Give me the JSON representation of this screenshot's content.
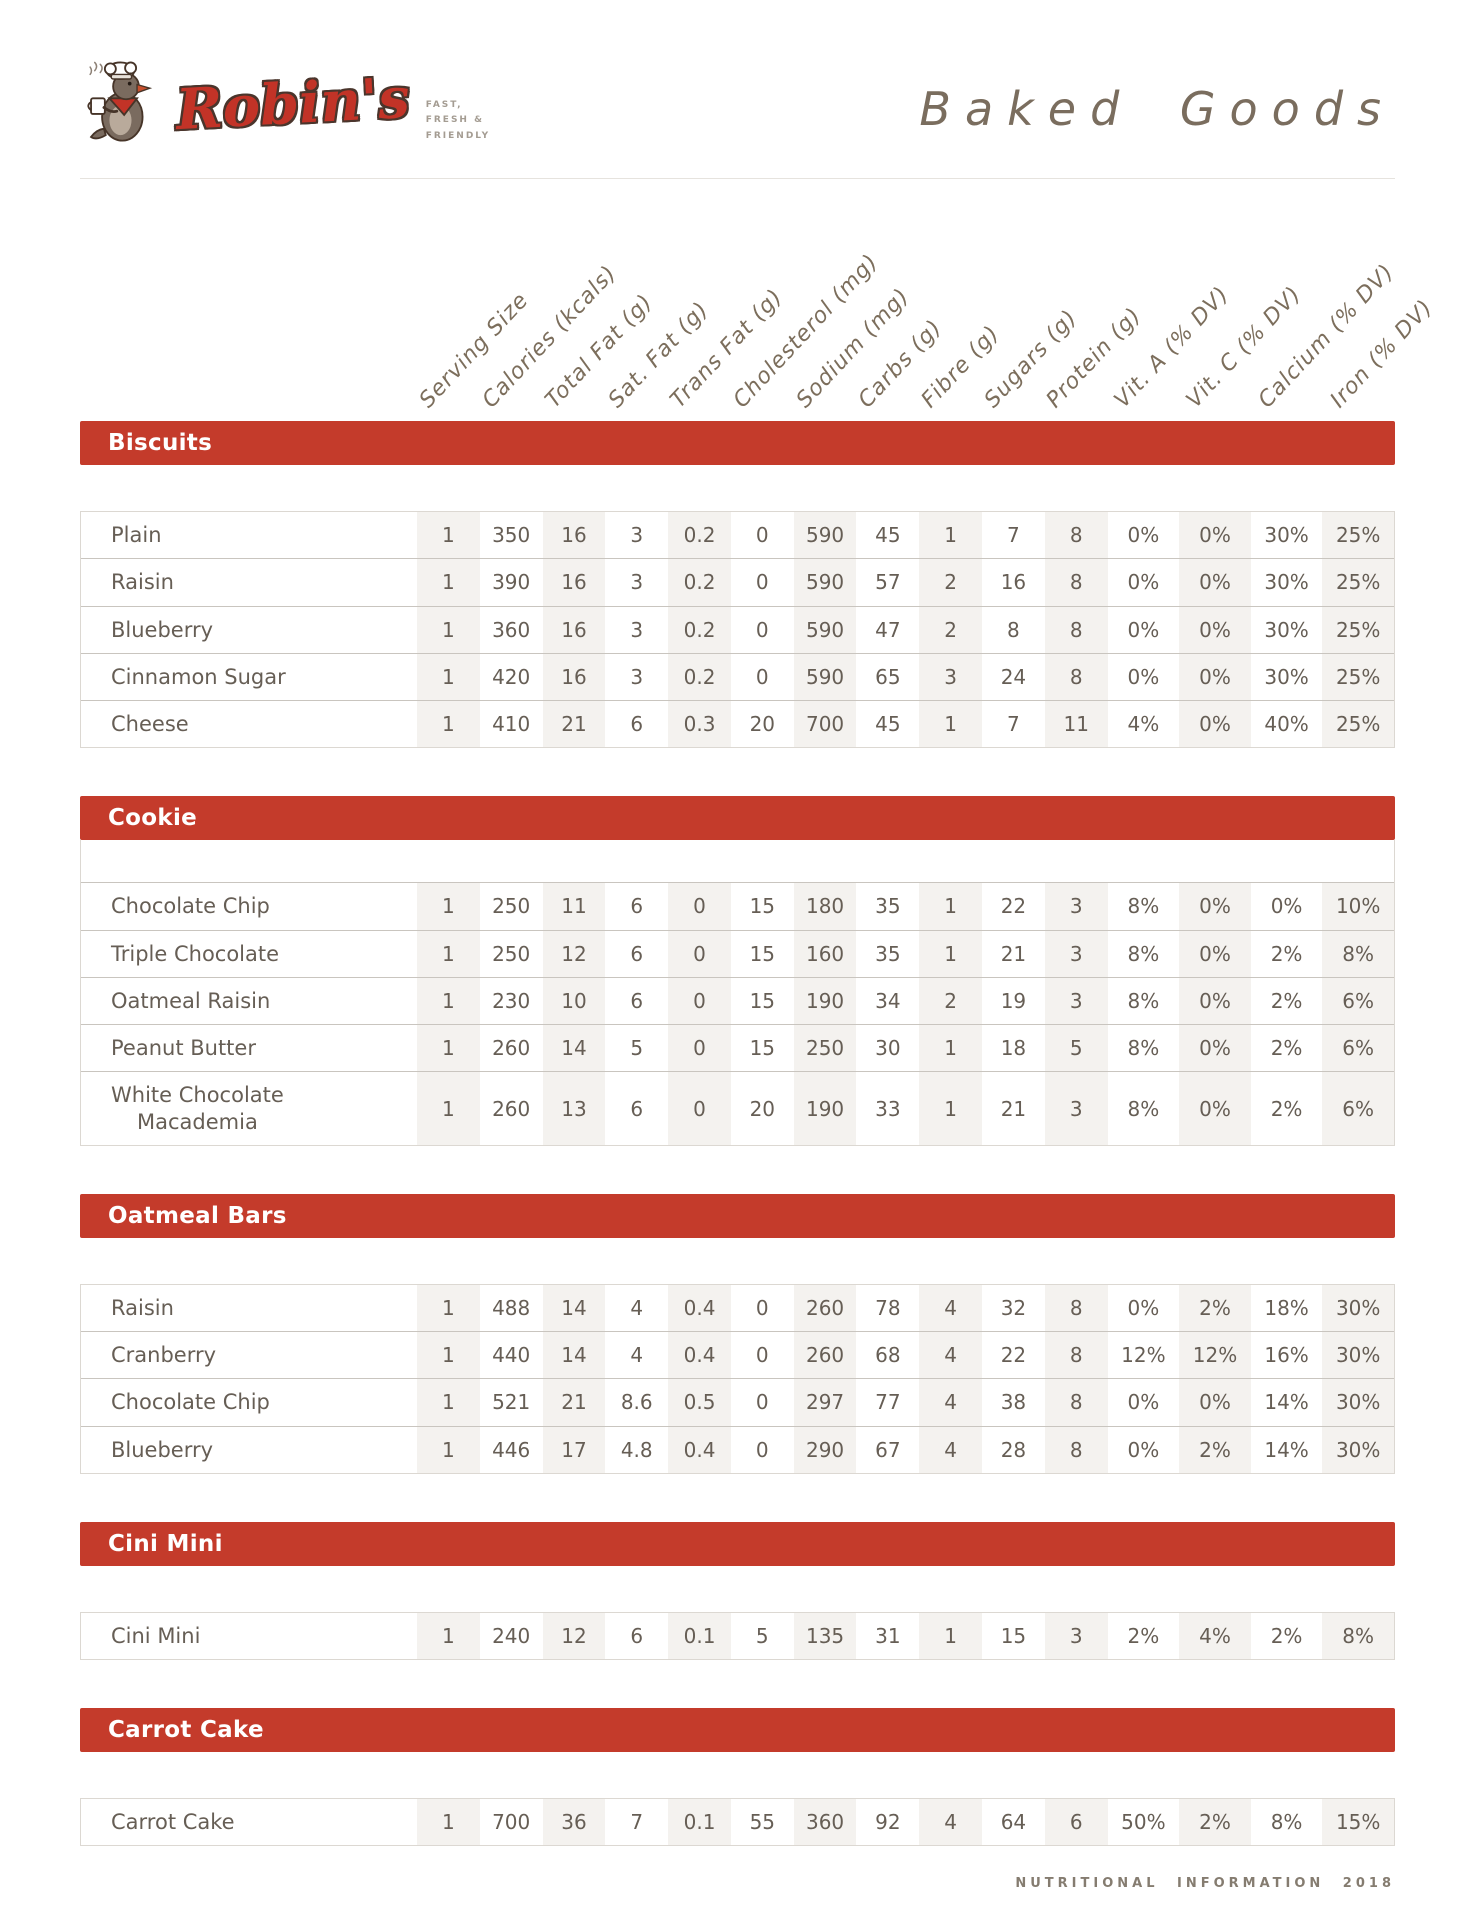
{
  "brand": {
    "name": "Robin's",
    "tagline_lines": [
      "FAST,",
      "FRESH &",
      "FRIENDLY"
    ]
  },
  "header": {
    "title": "Baked Goods"
  },
  "columns": [
    "Serving Size",
    "Calories (kcals)",
    "Total Fat (g)",
    "Sat. Fat (g)",
    "Trans Fat (g)",
    "Cholesterol (mg)",
    "Sodium (mg)",
    "Carbs (g)",
    "Fibre (g)",
    "Sugars (g)",
    "Protein (g)",
    "Vit. A (% DV)",
    "Vit. C (% DV)",
    "Calcium (% DV)",
    "Iron (% DV)"
  ],
  "sections": [
    {
      "title": "Biscuits",
      "leading_empty_row": false,
      "rows": [
        {
          "item": "Plain",
          "values": [
            "1",
            "350",
            "16",
            "3",
            "0.2",
            "0",
            "590",
            "45",
            "1",
            "7",
            "8",
            "0%",
            "0%",
            "30%",
            "25%"
          ]
        },
        {
          "item": "Raisin",
          "values": [
            "1",
            "390",
            "16",
            "3",
            "0.2",
            "0",
            "590",
            "57",
            "2",
            "16",
            "8",
            "0%",
            "0%",
            "30%",
            "25%"
          ]
        },
        {
          "item": "Blueberry",
          "values": [
            "1",
            "360",
            "16",
            "3",
            "0.2",
            "0",
            "590",
            "47",
            "2",
            "8",
            "8",
            "0%",
            "0%",
            "30%",
            "25%"
          ]
        },
        {
          "item": "Cinnamon Sugar",
          "values": [
            "1",
            "420",
            "16",
            "3",
            "0.2",
            "0",
            "590",
            "65",
            "3",
            "24",
            "8",
            "0%",
            "0%",
            "30%",
            "25%"
          ]
        },
        {
          "item": "Cheese",
          "values": [
            "1",
            "410",
            "21",
            "6",
            "0.3",
            "20",
            "700",
            "45",
            "1",
            "7",
            "11",
            "4%",
            "0%",
            "40%",
            "25%"
          ]
        }
      ]
    },
    {
      "title": "Cookie",
      "leading_empty_row": true,
      "rows": [
        {
          "item": "Chocolate Chip",
          "values": [
            "1",
            "250",
            "11",
            "6",
            "0",
            "15",
            "180",
            "35",
            "1",
            "22",
            "3",
            "8%",
            "0%",
            "0%",
            "10%"
          ]
        },
        {
          "item": "Triple Chocolate",
          "values": [
            "1",
            "250",
            "12",
            "6",
            "0",
            "15",
            "160",
            "35",
            "1",
            "21",
            "3",
            "8%",
            "0%",
            "2%",
            "8%"
          ]
        },
        {
          "item": "Oatmeal Raisin",
          "values": [
            "1",
            "230",
            "10",
            "6",
            "0",
            "15",
            "190",
            "34",
            "2",
            "19",
            "3",
            "8%",
            "0%",
            "2%",
            "6%"
          ]
        },
        {
          "item": "Peanut Butter",
          "values": [
            "1",
            "260",
            "14",
            "5",
            "0",
            "15",
            "250",
            "30",
            "1",
            "18",
            "5",
            "8%",
            "0%",
            "2%",
            "6%"
          ]
        },
        {
          "item": "White Chocolate\nMacademia",
          "values": [
            "1",
            "260",
            "13",
            "6",
            "0",
            "20",
            "190",
            "33",
            "1",
            "21",
            "3",
            "8%",
            "0%",
            "2%",
            "6%"
          ]
        }
      ]
    },
    {
      "title": "Oatmeal Bars",
      "leading_empty_row": false,
      "rows": [
        {
          "item": "Raisin",
          "values": [
            "1",
            "488",
            "14",
            "4",
            "0.4",
            "0",
            "260",
            "78",
            "4",
            "32",
            "8",
            "0%",
            "2%",
            "18%",
            "30%"
          ]
        },
        {
          "item": "Cranberry",
          "values": [
            "1",
            "440",
            "14",
            "4",
            "0.4",
            "0",
            "260",
            "68",
            "4",
            "22",
            "8",
            "12%",
            "12%",
            "16%",
            "30%"
          ]
        },
        {
          "item": "Chocolate Chip",
          "values": [
            "1",
            "521",
            "21",
            "8.6",
            "0.5",
            "0",
            "297",
            "77",
            "4",
            "38",
            "8",
            "0%",
            "0%",
            "14%",
            "30%"
          ]
        },
        {
          "item": "Blueberry",
          "values": [
            "1",
            "446",
            "17",
            "4.8",
            "0.4",
            "0",
            "290",
            "67",
            "4",
            "28",
            "8",
            "0%",
            "2%",
            "14%",
            "30%"
          ]
        }
      ]
    },
    {
      "title": "Cini Mini",
      "leading_empty_row": false,
      "rows": [
        {
          "item": "Cini Mini",
          "values": [
            "1",
            "240",
            "12",
            "6",
            "0.1",
            "5",
            "135",
            "31",
            "1",
            "15",
            "3",
            "2%",
            "4%",
            "2%",
            "8%"
          ]
        }
      ]
    },
    {
      "title": "Carrot Cake",
      "leading_empty_row": false,
      "rows": [
        {
          "item": "Carrot Cake",
          "values": [
            "1",
            "700",
            "36",
            "7",
            "0.1",
            "55",
            "360",
            "92",
            "4",
            "64",
            "6",
            "50%",
            "2%",
            "8%",
            "15%"
          ]
        }
      ]
    }
  ],
  "footer": {
    "text": "NUTRITIONAL INFORMATION 2018"
  },
  "colors": {
    "accent_red": "#c43b2b",
    "text": "#665e55",
    "handwriting": "#7c6e5c"
  }
}
